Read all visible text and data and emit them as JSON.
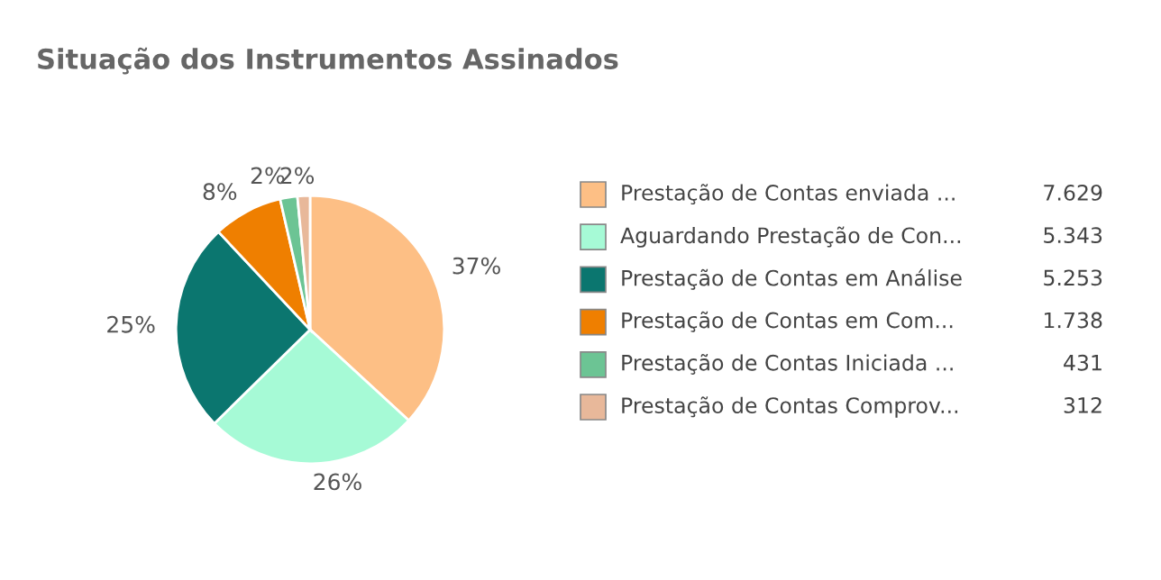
{
  "chart_data": {
    "type": "pie",
    "title": "Situação dos Instrumentos Assinados",
    "categories": [
      "Prestação de Contas enviada ...",
      "Aguardando Prestação de Con...",
      "Prestação de Contas em Análise",
      "Prestação de Contas em Com...",
      "Prestação de Contas Iniciada ...",
      "Prestação de Contas Comprov..."
    ],
    "values": [
      36.85,
      25.8,
      25.37,
      8.39,
      2.08,
      1.51
    ],
    "value_labels": [
      "37%",
      "26%",
      "25%",
      "8%",
      "2%",
      "2%"
    ],
    "annotations": [
      "7.629",
      "5.343",
      "5.253",
      "1.738",
      "431",
      "312"
    ],
    "colors": [
      "#fdbf85",
      "#a6fad6",
      "#0b766f",
      "#ef7f00",
      "#6cc494",
      "#e8b89a"
    ],
    "legend": "right"
  }
}
